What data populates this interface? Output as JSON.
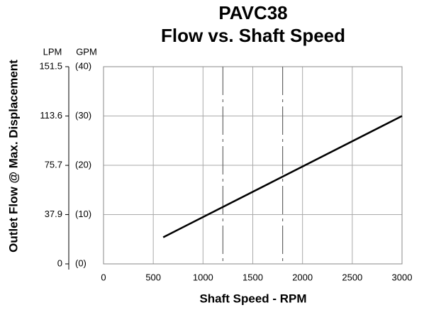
{
  "chart_data": {
    "type": "line",
    "title": "PAVC38",
    "subtitle": "Flow vs. Shaft Speed",
    "x_label": "Shaft Speed - RPM",
    "y_label": "Outlet Flow @ Max. Displacement",
    "y_unit": "GPM",
    "y2_unit": "LPM",
    "xlim": [
      0,
      3000
    ],
    "xticks": [
      0,
      500,
      1000,
      1500,
      2000,
      2500,
      3000
    ],
    "ylim": [
      0,
      40
    ],
    "yticks": [
      {
        "value": 0,
        "label": "(0)"
      },
      {
        "value": 10,
        "label": "(10)"
      },
      {
        "value": 20,
        "label": "(20)"
      },
      {
        "value": 30,
        "label": "(30)"
      },
      {
        "value": 40,
        "label": "(40)"
      }
    ],
    "y2lim": [
      0,
      151.5
    ],
    "y2ticks": [
      0,
      37.9,
      75.7,
      113.6,
      151.5
    ],
    "grid": true,
    "vlines": [
      1200,
      1800
    ],
    "series": [
      {
        "name": "Flow",
        "color": "#000000",
        "x": [
          600,
          3000
        ],
        "values": [
          5.4,
          30
        ]
      }
    ]
  }
}
